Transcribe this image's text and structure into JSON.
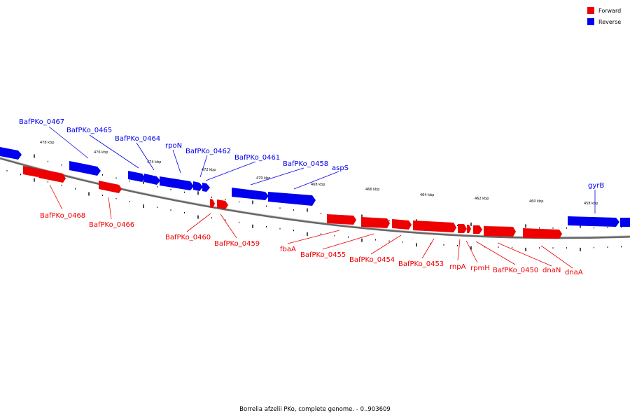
{
  "caption": "Borrelia afzelii PKo, complete genome. - 0..903609",
  "legend": {
    "forward_label": "Forward",
    "reverse_label": "Reverse",
    "forward_color": "#ee0000",
    "reverse_color": "#0000ee"
  },
  "kbp_labels": [
    "478 kbp",
    "476 kbp",
    "474 kbp",
    "472 kbp",
    "470 kbp",
    "468 kbp",
    "466 kbp",
    "464 kbp",
    "462 kbp",
    "460 kbp",
    "458 kbp"
  ],
  "genes": {
    "reverse": [
      {
        "name": "BafPKo_0467"
      },
      {
        "name": "BafPKo_0465"
      },
      {
        "name": "BafPKo_0464"
      },
      {
        "name": "rpoN"
      },
      {
        "name": "BafPKo_0462"
      },
      {
        "name": "BafPKo_0461"
      },
      {
        "name": "BafPKo_0458"
      },
      {
        "name": "aspS"
      },
      {
        "name": "gyrB"
      }
    ],
    "forward": [
      {
        "name": "BafPKo_0468"
      },
      {
        "name": "BafPKo_0466"
      },
      {
        "name": "BafPKo_0460"
      },
      {
        "name": "BafPKo_0459"
      },
      {
        "name": "fbaA"
      },
      {
        "name": "BafPKo_0455"
      },
      {
        "name": "BafPKo_0454"
      },
      {
        "name": "BafPKo_0453"
      },
      {
        "name": "rnpA"
      },
      {
        "name": "rpmH"
      },
      {
        "name": "BafPKo_0450"
      },
      {
        "name": "dnaN"
      },
      {
        "name": "dnaA"
      }
    ]
  }
}
